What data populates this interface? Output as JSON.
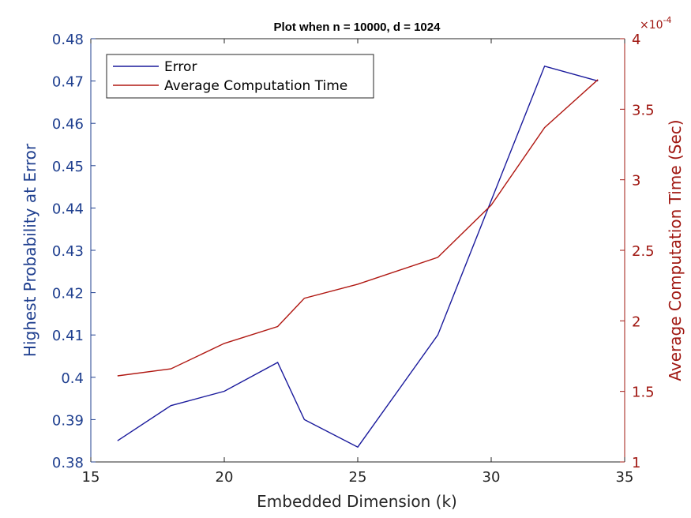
{
  "chart_data": {
    "type": "line",
    "title": "Plot when n = 10000, d = 1024",
    "xlabel": "Embedded Dimension (k)",
    "ylabel_left": "Highest Probability at Error",
    "ylabel_right": "Average Computation Time (Sec)",
    "right_exponent_base": "×10",
    "right_exponent_power": "-4",
    "xlim": [
      15,
      35
    ],
    "ylim_left": [
      0.38,
      0.48
    ],
    "ylim_right": [
      1,
      4
    ],
    "xticks": [
      "15",
      "20",
      "25",
      "30",
      "35"
    ],
    "yticks_left": [
      "0.38",
      "0.39",
      "0.4",
      "0.41",
      "0.42",
      "0.43",
      "0.44",
      "0.45",
      "0.46",
      "0.47",
      "0.48"
    ],
    "yticks_right": [
      "1",
      "1.5",
      "2",
      "2.5",
      "3",
      "3.5",
      "4"
    ],
    "legend_position": "top-left",
    "grid": false,
    "series": [
      {
        "name": "Error",
        "axis": "left",
        "color": "#1a1a9c",
        "x": [
          16,
          18,
          20,
          22,
          23,
          25,
          28,
          32,
          34
        ],
        "y": [
          0.385,
          0.3933,
          0.3967,
          0.4035,
          0.39,
          0.3835,
          0.41,
          0.4735,
          0.47
        ]
      },
      {
        "name": "Average Computation Time",
        "axis": "right",
        "color": "#b01812",
        "x": [
          16,
          18,
          20,
          22,
          23,
          25,
          28,
          30,
          32,
          34
        ],
        "y": [
          1.61,
          1.66,
          1.84,
          1.96,
          2.16,
          2.26,
          2.45,
          2.82,
          3.37,
          3.71
        ]
      }
    ]
  }
}
